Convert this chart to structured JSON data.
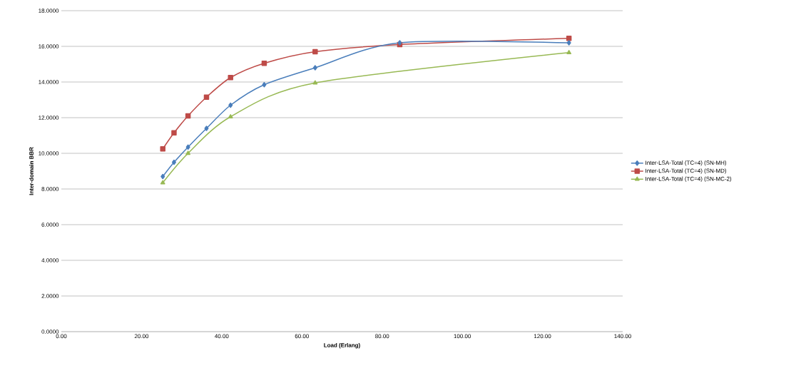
{
  "chart_data": {
    "type": "line",
    "xlabel": "Load (Erlang)",
    "ylabel": "Inter-domain BBR",
    "x": [
      25.3,
      28.1,
      31.6,
      36.2,
      42.2,
      50.6,
      63.3,
      84.4,
      126.6
    ],
    "series": [
      {
        "name": "Inter-LSA-Total (TC=4) (SN-MH)",
        "color": "#4a7ebb",
        "marker": "diamond",
        "values": [
          8.7,
          9.5,
          10.35,
          11.4,
          12.7,
          13.85,
          14.8,
          16.2,
          16.2
        ]
      },
      {
        "name": "Inter-LSA-Total (TC=4) (SN-MD)",
        "color": "#be4b48",
        "marker": "square",
        "values": [
          10.25,
          11.15,
          12.1,
          13.15,
          14.25,
          15.05,
          15.7,
          16.1,
          16.45
        ]
      },
      {
        "name": "Inter-LSA-Total (TC=4) (SN-MC-2)",
        "color": "#98b954",
        "marker": "triangle",
        "x": [
          25.3,
          31.6,
          42.2,
          63.3,
          126.6
        ],
        "values": [
          8.35,
          10.0,
          12.05,
          13.95,
          15.65
        ]
      }
    ],
    "xlim": [
      0,
      140
    ],
    "xticks": [
      {
        "value": 0,
        "label": "0.00"
      },
      {
        "value": 20,
        "label": "20.00"
      },
      {
        "value": 40,
        "label": "40.00"
      },
      {
        "value": 60,
        "label": "60.00"
      },
      {
        "value": 80,
        "label": "80.00"
      },
      {
        "value": 100,
        "label": "100.00"
      },
      {
        "value": 120,
        "label": "120.00"
      },
      {
        "value": 140,
        "label": "140.00"
      }
    ],
    "ylim": [
      0,
      18
    ],
    "yticks": [
      {
        "value": 0,
        "label": "0.0000"
      },
      {
        "value": 2,
        "label": "2.0000"
      },
      {
        "value": 4,
        "label": "4.0000"
      },
      {
        "value": 6,
        "label": "6.0000"
      },
      {
        "value": 8,
        "label": "8.0000"
      },
      {
        "value": 10,
        "label": "10.0000"
      },
      {
        "value": 12,
        "label": "12.0000"
      },
      {
        "value": 14,
        "label": "14.0000"
      },
      {
        "value": 16,
        "label": "16.0000"
      },
      {
        "value": 18,
        "label": "18.0000"
      }
    ],
    "grid": "y",
    "legend": "right",
    "line_style": "solid"
  }
}
